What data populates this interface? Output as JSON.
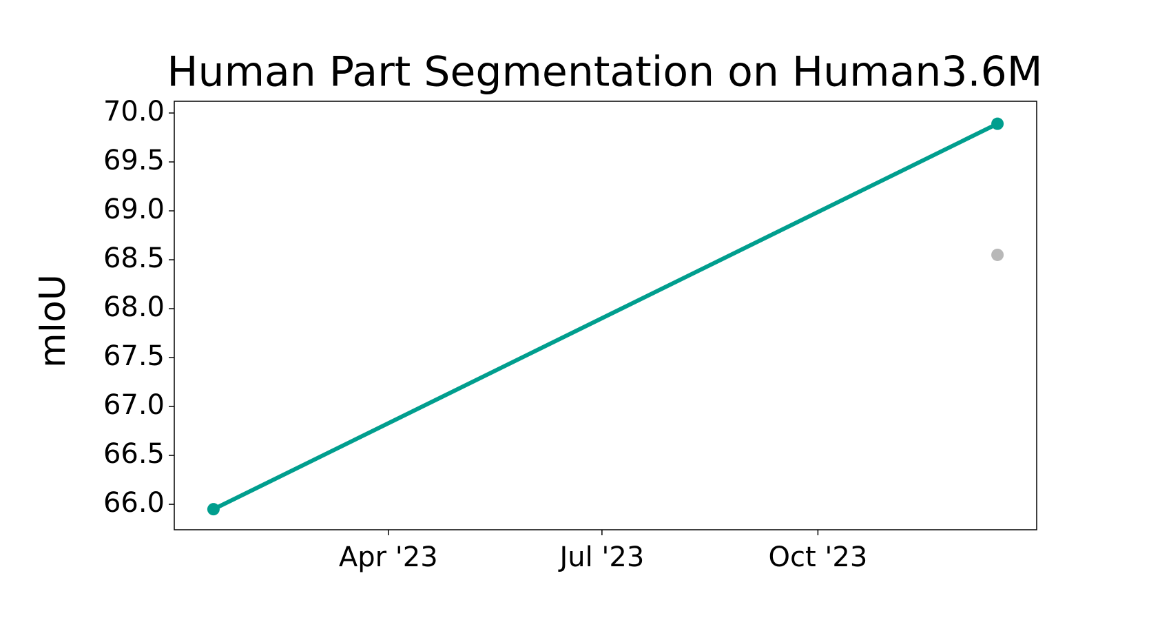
{
  "chart_data": {
    "type": "line",
    "title": "Human Part Segmentation on Human3.6M",
    "y_label": "mIoU",
    "x": [
      "2023-01",
      "2023-12"
    ],
    "xticks": [
      {
        "value": "2023-04",
        "label": "Apr '23"
      },
      {
        "value": "2023-07",
        "label": "Jul '23"
      },
      {
        "value": "2023-10",
        "label": "Oct '23"
      }
    ],
    "series": [
      {
        "color": "#009e8e",
        "values": [
          65.95,
          69.89
        ]
      },
      {
        "color": "#b8b8b8",
        "values": [
          null,
          68.55
        ],
        "markers_only": true
      }
    ],
    "ylim": [
      65.74,
      70.12
    ],
    "yticks": [
      {
        "value": 66,
        "label": "66.0"
      },
      66.5,
      {
        "value": 67,
        "label": "67.0"
      },
      67.5,
      {
        "value": 68,
        "label": "68.0"
      },
      68.5,
      {
        "value": 69,
        "label": "69.0"
      },
      69.5,
      {
        "value": 70,
        "label": "70.0"
      }
    ],
    "grid": false
  }
}
